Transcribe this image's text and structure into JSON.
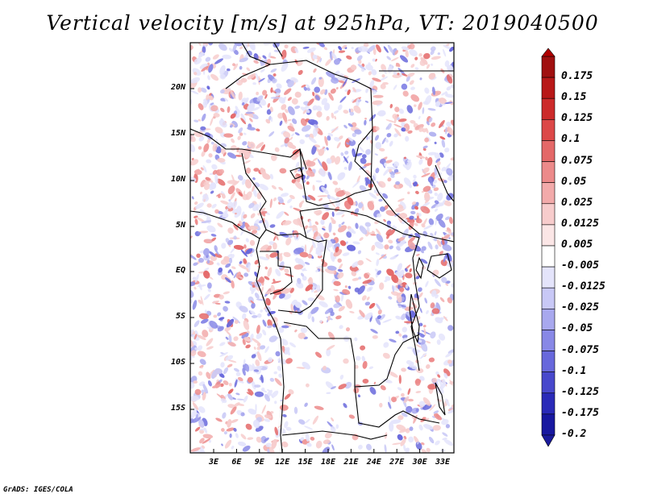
{
  "title": "Vertical velocity [m/s] at 925hPa, VT: 2019040500",
  "credit": "GrADS: IGES/COLA",
  "map": {
    "lat_labels": [
      "20N",
      "15N",
      "10N",
      "5N",
      "EQ",
      "5S",
      "10S",
      "15S"
    ],
    "lon_labels": [
      "3E",
      "6E",
      "9E",
      "12E",
      "15E",
      "18E",
      "21E",
      "24E",
      "27E",
      "30E",
      "33E"
    ]
  },
  "colorbar": {
    "labels": [
      "0.175",
      "0.15",
      "0.125",
      "0.1",
      "0.075",
      "0.05",
      "0.025",
      "0.0125",
      "0.005",
      "-0.005",
      "-0.0125",
      "-0.025",
      "-0.05",
      "-0.075",
      "-0.1",
      "-0.125",
      "-0.175",
      "-0.2"
    ],
    "colors": [
      "#a01010",
      "#b81818",
      "#cc2a2a",
      "#dc4848",
      "#e46868",
      "#ec8a8a",
      "#f2aaaa",
      "#f7cccc",
      "#fbe6e6",
      "#ffffff",
      "#e4e4fb",
      "#c8c8f6",
      "#a8a8ee",
      "#8888e6",
      "#6868dc",
      "#4848cc",
      "#2a2ab8",
      "#1818a0"
    ],
    "accent_red": "#b00000",
    "accent_blue": "#1a1a9c"
  }
}
